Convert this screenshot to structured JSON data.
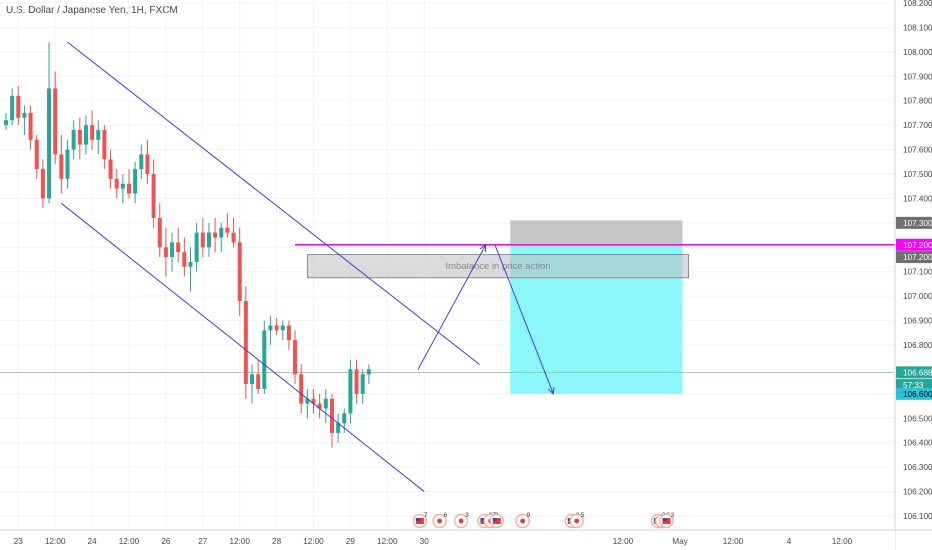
{
  "chart_data": {
    "type": "candlestick",
    "title": "U.S. Dollar / Japanese Yen, 1H, FXCM",
    "y_axis": {
      "position": "right",
      "range": [
        106.08,
        108.22
      ],
      "ticks": [
        "108.200",
        "108.100",
        "108.000",
        "107.900",
        "107.800",
        "107.700",
        "107.600",
        "107.500",
        "107.400",
        "107.300",
        "107.200",
        "107.100",
        "107.000",
        "106.900",
        "106.800",
        "106.700",
        "106.600",
        "106.500",
        "106.400",
        "106.300",
        "106.200",
        "106.100"
      ]
    },
    "x_axis": {
      "range": [
        0,
        70
      ],
      "ticks": [
        {
          "label": "23",
          "x": 2
        },
        {
          "label": "12:00",
          "x": 8
        },
        {
          "label": "24",
          "x": 14
        },
        {
          "label": "12:00",
          "x": 20
        },
        {
          "label": "26",
          "x": 26
        },
        {
          "label": "27",
          "x": 32
        },
        {
          "label": "12:00",
          "x": 38
        },
        {
          "label": "28",
          "x": 44
        },
        {
          "label": "12:00",
          "x": 50
        },
        {
          "label": "29",
          "x": 56
        },
        {
          "label": "12:00",
          "x": 62
        },
        {
          "label": "30",
          "x": 68
        }
      ]
    },
    "x_axis_future_ticks": [
      "12:00",
      "May",
      "12:00",
      "4",
      "12:00"
    ],
    "candles": [
      {
        "o": 107.7,
        "h": 107.75,
        "l": 107.68,
        "c": 107.72
      },
      {
        "o": 107.72,
        "h": 107.85,
        "l": 107.7,
        "c": 107.82
      },
      {
        "o": 107.82,
        "h": 107.86,
        "l": 107.7,
        "c": 107.73
      },
      {
        "o": 107.73,
        "h": 107.78,
        "l": 107.66,
        "c": 107.75
      },
      {
        "o": 107.75,
        "h": 107.78,
        "l": 107.6,
        "c": 107.64
      },
      {
        "o": 107.64,
        "h": 107.66,
        "l": 107.48,
        "c": 107.52
      },
      {
        "o": 107.52,
        "h": 107.56,
        "l": 107.36,
        "c": 107.4
      },
      {
        "o": 107.4,
        "h": 108.04,
        "l": 107.38,
        "c": 107.85
      },
      {
        "o": 107.85,
        "h": 107.92,
        "l": 107.54,
        "c": 107.58
      },
      {
        "o": 107.58,
        "h": 107.66,
        "l": 107.42,
        "c": 107.48
      },
      {
        "o": 107.48,
        "h": 107.64,
        "l": 107.44,
        "c": 107.6
      },
      {
        "o": 107.6,
        "h": 107.72,
        "l": 107.56,
        "c": 107.68
      },
      {
        "o": 107.68,
        "h": 107.73,
        "l": 107.56,
        "c": 107.62
      },
      {
        "o": 107.62,
        "h": 107.74,
        "l": 107.58,
        "c": 107.7
      },
      {
        "o": 107.7,
        "h": 107.76,
        "l": 107.6,
        "c": 107.64
      },
      {
        "o": 107.64,
        "h": 107.72,
        "l": 107.58,
        "c": 107.68
      },
      {
        "o": 107.68,
        "h": 107.7,
        "l": 107.52,
        "c": 107.56
      },
      {
        "o": 107.56,
        "h": 107.6,
        "l": 107.44,
        "c": 107.48
      },
      {
        "o": 107.48,
        "h": 107.52,
        "l": 107.4,
        "c": 107.44
      },
      {
        "o": 107.44,
        "h": 107.5,
        "l": 107.38,
        "c": 107.46
      },
      {
        "o": 107.46,
        "h": 107.52,
        "l": 107.4,
        "c": 107.42
      },
      {
        "o": 107.42,
        "h": 107.55,
        "l": 107.38,
        "c": 107.52
      },
      {
        "o": 107.52,
        "h": 107.62,
        "l": 107.48,
        "c": 107.58
      },
      {
        "o": 107.58,
        "h": 107.64,
        "l": 107.46,
        "c": 107.5
      },
      {
        "o": 107.5,
        "h": 107.56,
        "l": 107.28,
        "c": 107.32
      },
      {
        "o": 107.32,
        "h": 107.38,
        "l": 107.16,
        "c": 107.2
      },
      {
        "o": 107.2,
        "h": 107.28,
        "l": 107.08,
        "c": 107.16
      },
      {
        "o": 107.16,
        "h": 107.26,
        "l": 107.1,
        "c": 107.22
      },
      {
        "o": 107.22,
        "h": 107.28,
        "l": 107.14,
        "c": 107.18
      },
      {
        "o": 107.18,
        "h": 107.24,
        "l": 107.08,
        "c": 107.12
      },
      {
        "o": 107.12,
        "h": 107.2,
        "l": 107.02,
        "c": 107.14
      },
      {
        "o": 107.14,
        "h": 107.3,
        "l": 107.1,
        "c": 107.26
      },
      {
        "o": 107.26,
        "h": 107.32,
        "l": 107.16,
        "c": 107.2
      },
      {
        "o": 107.2,
        "h": 107.3,
        "l": 107.16,
        "c": 107.26
      },
      {
        "o": 107.26,
        "h": 107.32,
        "l": 107.18,
        "c": 107.24
      },
      {
        "o": 107.24,
        "h": 107.3,
        "l": 107.18,
        "c": 107.28
      },
      {
        "o": 107.28,
        "h": 107.34,
        "l": 107.24,
        "c": 107.26
      },
      {
        "o": 107.26,
        "h": 107.32,
        "l": 107.2,
        "c": 107.22
      },
      {
        "o": 107.22,
        "h": 107.28,
        "l": 106.92,
        "c": 106.98
      },
      {
        "o": 106.98,
        "h": 107.04,
        "l": 106.58,
        "c": 106.64
      },
      {
        "o": 106.64,
        "h": 106.72,
        "l": 106.56,
        "c": 106.68
      },
      {
        "o": 106.68,
        "h": 106.74,
        "l": 106.6,
        "c": 106.62
      },
      {
        "o": 106.62,
        "h": 106.9,
        "l": 106.6,
        "c": 106.86
      },
      {
        "o": 106.86,
        "h": 106.92,
        "l": 106.8,
        "c": 106.88
      },
      {
        "o": 106.88,
        "h": 106.91,
        "l": 106.84,
        "c": 106.86
      },
      {
        "o": 106.86,
        "h": 106.9,
        "l": 106.82,
        "c": 106.88
      },
      {
        "o": 106.88,
        "h": 106.9,
        "l": 106.78,
        "c": 106.82
      },
      {
        "o": 106.82,
        "h": 106.86,
        "l": 106.64,
        "c": 106.68
      },
      {
        "o": 106.68,
        "h": 106.72,
        "l": 106.52,
        "c": 106.56
      },
      {
        "o": 106.56,
        "h": 106.62,
        "l": 106.5,
        "c": 106.58
      },
      {
        "o": 106.58,
        "h": 106.62,
        "l": 106.52,
        "c": 106.56
      },
      {
        "o": 106.56,
        "h": 106.6,
        "l": 106.5,
        "c": 106.54
      },
      {
        "o": 106.54,
        "h": 106.62,
        "l": 106.48,
        "c": 106.58
      },
      {
        "o": 106.58,
        "h": 106.6,
        "l": 106.38,
        "c": 106.44
      },
      {
        "o": 106.44,
        "h": 106.52,
        "l": 106.4,
        "c": 106.48
      },
      {
        "o": 106.48,
        "h": 106.54,
        "l": 106.44,
        "c": 106.52
      },
      {
        "o": 106.52,
        "h": 106.74,
        "l": 106.48,
        "c": 106.7
      },
      {
        "o": 106.7,
        "h": 106.74,
        "l": 106.56,
        "c": 106.6
      },
      {
        "o": 106.6,
        "h": 106.7,
        "l": 106.56,
        "c": 106.68
      },
      {
        "o": 106.68,
        "h": 106.72,
        "l": 106.64,
        "c": 106.7
      }
    ],
    "candle_colors": {
      "up": "#26a69a",
      "down": "#ef5350"
    },
    "drawings": {
      "channel_line_upper": {
        "from": [
          10,
          108.04
        ],
        "to": [
          77,
          106.72
        ],
        "color": "#3f3fd4"
      },
      "channel_line_lower": {
        "from": [
          9,
          107.38
        ],
        "to": [
          68,
          106.2
        ],
        "color": "#3f3fd4"
      },
      "path_arrow_up": {
        "from": [
          67,
          106.7
        ],
        "to": [
          78,
          107.21
        ],
        "color": "#3f3fd4"
      },
      "path_arrow_down": {
        "from": [
          79.5,
          107.21
        ],
        "to": [
          89,
          106.6
        ],
        "color": "#3f3fd4"
      },
      "resistance_line": {
        "from": [
          47,
          107.21
        ],
        "to": [
          111,
          107.21
        ],
        "price": 107.2,
        "color": "#ff00ff"
      },
      "imbalance_zone": {
        "x": [
          49,
          111
        ],
        "price": [
          107.075,
          107.17
        ],
        "label": "Imbalance in price action",
        "color": "#bdbdbd"
      },
      "stop_zone": {
        "x": [
          82,
          110
        ],
        "price": [
          107.21,
          107.31
        ],
        "color": "#9e9e9e"
      },
      "target_zone": {
        "x": [
          82,
          110
        ],
        "price": [
          106.6,
          107.21
        ],
        "color": "#80f6fb"
      },
      "current_price_line": {
        "price": 106.688,
        "color": "#81c784"
      }
    },
    "price_labels": [
      {
        "text": "107.300",
        "price": 107.3,
        "bg": "#707070",
        "fg": "#ffffff"
      },
      {
        "text": "107.200",
        "price": 107.21,
        "bg": "#ff00ff",
        "fg": "#ffffff"
      },
      {
        "text": "107.200",
        "price": 107.16,
        "bg": "#707070",
        "fg": "#ffffff"
      },
      {
        "text": "106.688",
        "price": 106.688,
        "bg": "#26a69a",
        "fg": "#ffffff"
      },
      {
        "text": "57:33",
        "price": 106.636,
        "bg": "#26a69a",
        "fg": "#ffffff"
      },
      {
        "text": "106.600",
        "price": 106.6,
        "bg": "#26c6da",
        "fg": "#000000"
      }
    ],
    "event_markers": [
      {
        "x": 67.3,
        "count": "7",
        "kind": "us"
      },
      {
        "x": 70.5,
        "count": "6",
        "kind": "jp"
      },
      {
        "x": 74.0,
        "count": "3",
        "kind": "jp"
      },
      {
        "x": 77.8,
        "count": "27",
        "kind": "us"
      },
      {
        "x": 78.8,
        "count": "2",
        "kind": "jp"
      },
      {
        "x": 79.8,
        "count": "",
        "kind": "us"
      },
      {
        "x": 84.0,
        "count": "9",
        "kind": "jp"
      },
      {
        "x": 92.0,
        "count": "3",
        "kind": "us"
      },
      {
        "x": 92.8,
        "count": "5",
        "kind": "jp"
      },
      {
        "x": 106.0,
        "count": "2",
        "kind": "us"
      },
      {
        "x": 106.7,
        "count": "3",
        "kind": "jp"
      },
      {
        "x": 107.4,
        "count": "3",
        "kind": "us"
      }
    ]
  }
}
